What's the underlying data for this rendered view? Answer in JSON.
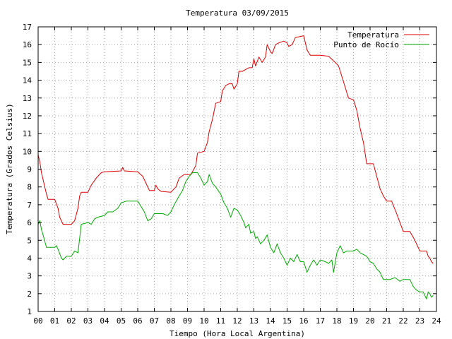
{
  "chart_data": {
    "type": "line",
    "title": "Temperatura 03/09/2015",
    "xlabel": "Tiempo (Hora Local Argentina)",
    "ylabel": "Temperatura (Grados Celsius)",
    "xlim": [
      0,
      24
    ],
    "ylim": [
      1,
      17
    ],
    "x_ticks": [
      "00",
      "01",
      "02",
      "03",
      "04",
      "05",
      "06",
      "07",
      "08",
      "09",
      "10",
      "11",
      "12",
      "13",
      "14",
      "15",
      "16",
      "17",
      "18",
      "19",
      "20",
      "21",
      "22",
      "23",
      "24"
    ],
    "y_ticks": [
      "1",
      "2",
      "3",
      "4",
      "5",
      "6",
      "7",
      "8",
      "9",
      "10",
      "11",
      "12",
      "13",
      "14",
      "15",
      "16",
      "17"
    ],
    "grid": true,
    "legend_position": "top-right",
    "series": [
      {
        "name": "Temperatura",
        "color": "#dd0000",
        "points": [
          [
            0.0,
            9.8
          ],
          [
            0.1,
            9.4
          ],
          [
            0.2,
            8.8
          ],
          [
            0.4,
            8.0
          ],
          [
            0.5,
            7.6
          ],
          [
            0.6,
            7.3
          ],
          [
            1.0,
            7.3
          ],
          [
            1.2,
            6.8
          ],
          [
            1.3,
            6.3
          ],
          [
            1.5,
            5.9
          ],
          [
            2.0,
            5.9
          ],
          [
            2.2,
            6.1
          ],
          [
            2.4,
            6.8
          ],
          [
            2.5,
            7.5
          ],
          [
            2.6,
            7.7
          ],
          [
            3.0,
            7.7
          ],
          [
            3.2,
            8.1
          ],
          [
            3.5,
            8.5
          ],
          [
            3.8,
            8.8
          ],
          [
            4.0,
            8.85
          ],
          [
            5.0,
            8.9
          ],
          [
            5.1,
            9.1
          ],
          [
            5.2,
            8.9
          ],
          [
            6.0,
            8.85
          ],
          [
            6.3,
            8.6
          ],
          [
            6.5,
            8.2
          ],
          [
            6.7,
            7.8
          ],
          [
            7.0,
            7.8
          ],
          [
            7.1,
            8.1
          ],
          [
            7.2,
            7.9
          ],
          [
            7.4,
            7.75
          ],
          [
            8.0,
            7.7
          ],
          [
            8.3,
            8.0
          ],
          [
            8.5,
            8.5
          ],
          [
            8.8,
            8.7
          ],
          [
            9.2,
            8.7
          ],
          [
            9.5,
            9.2
          ],
          [
            9.6,
            9.9
          ],
          [
            10.0,
            10.0
          ],
          [
            10.2,
            10.5
          ],
          [
            10.3,
            11.1
          ],
          [
            10.5,
            11.8
          ],
          [
            10.7,
            12.7
          ],
          [
            11.0,
            12.8
          ],
          [
            11.1,
            13.4
          ],
          [
            11.3,
            13.7
          ],
          [
            11.5,
            13.8
          ],
          [
            11.7,
            13.8
          ],
          [
            11.8,
            13.5
          ],
          [
            12.0,
            13.8
          ],
          [
            12.1,
            14.5
          ],
          [
            12.3,
            14.5
          ],
          [
            12.5,
            14.6
          ],
          [
            12.7,
            14.7
          ],
          [
            12.9,
            14.7
          ],
          [
            13.0,
            15.2
          ],
          [
            13.1,
            14.8
          ],
          [
            13.3,
            15.3
          ],
          [
            13.5,
            15.0
          ],
          [
            13.7,
            15.3
          ],
          [
            13.8,
            16.0
          ],
          [
            14.0,
            15.6
          ],
          [
            14.1,
            15.5
          ],
          [
            14.3,
            16.0
          ],
          [
            14.5,
            16.1
          ],
          [
            14.8,
            16.2
          ],
          [
            15.0,
            16.1
          ],
          [
            15.1,
            15.9
          ],
          [
            15.3,
            16.0
          ],
          [
            15.5,
            16.4
          ],
          [
            16.0,
            16.5
          ],
          [
            16.1,
            16.1
          ],
          [
            16.2,
            15.7
          ],
          [
            16.4,
            15.4
          ],
          [
            17.0,
            15.4
          ],
          [
            17.5,
            15.35
          ],
          [
            17.9,
            15.0
          ],
          [
            18.1,
            14.8
          ],
          [
            18.3,
            14.2
          ],
          [
            18.5,
            13.6
          ],
          [
            18.7,
            13.0
          ],
          [
            19.0,
            12.9
          ],
          [
            19.2,
            12.3
          ],
          [
            19.4,
            11.3
          ],
          [
            19.6,
            10.5
          ],
          [
            19.8,
            9.3
          ],
          [
            20.0,
            9.3
          ],
          [
            20.2,
            9.3
          ],
          [
            20.4,
            8.6
          ],
          [
            20.6,
            7.9
          ],
          [
            20.8,
            7.5
          ],
          [
            21.0,
            7.2
          ],
          [
            21.3,
            7.2
          ],
          [
            21.6,
            6.5
          ],
          [
            21.8,
            6.0
          ],
          [
            22.0,
            5.5
          ],
          [
            22.4,
            5.5
          ],
          [
            22.7,
            5.0
          ],
          [
            22.8,
            4.8
          ],
          [
            23.0,
            4.4
          ],
          [
            23.2,
            4.4
          ],
          [
            23.4,
            4.4
          ],
          [
            23.5,
            4.1
          ],
          [
            23.6,
            4.0
          ],
          [
            23.7,
            3.8
          ],
          [
            23.8,
            3.7
          ]
        ]
      },
      {
        "name": "Punto de Rocío",
        "color": "#00aa00",
        "points": [
          [
            0.0,
            5.9
          ],
          [
            0.1,
            6.1
          ],
          [
            0.2,
            5.6
          ],
          [
            0.3,
            5.3
          ],
          [
            0.5,
            4.6
          ],
          [
            1.0,
            4.6
          ],
          [
            1.1,
            4.7
          ],
          [
            1.2,
            4.5
          ],
          [
            1.4,
            4.0
          ],
          [
            1.5,
            3.9
          ],
          [
            1.7,
            4.1
          ],
          [
            2.0,
            4.1
          ],
          [
            2.2,
            4.4
          ],
          [
            2.4,
            4.3
          ],
          [
            2.6,
            5.9
          ],
          [
            3.0,
            6.0
          ],
          [
            3.2,
            5.9
          ],
          [
            3.4,
            6.2
          ],
          [
            3.6,
            6.3
          ],
          [
            4.0,
            6.4
          ],
          [
            4.2,
            6.6
          ],
          [
            4.5,
            6.6
          ],
          [
            4.8,
            6.8
          ],
          [
            5.0,
            7.1
          ],
          [
            5.3,
            7.2
          ],
          [
            6.0,
            7.2
          ],
          [
            6.2,
            6.9
          ],
          [
            6.4,
            6.6
          ],
          [
            6.6,
            6.1
          ],
          [
            6.8,
            6.2
          ],
          [
            7.0,
            6.5
          ],
          [
            7.2,
            6.5
          ],
          [
            7.5,
            6.5
          ],
          [
            7.8,
            6.4
          ],
          [
            8.0,
            6.6
          ],
          [
            8.2,
            7.0
          ],
          [
            8.5,
            7.5
          ],
          [
            8.7,
            7.8
          ],
          [
            8.9,
            8.3
          ],
          [
            9.1,
            8.6
          ],
          [
            9.3,
            8.8
          ],
          [
            9.6,
            8.8
          ],
          [
            9.8,
            8.5
          ],
          [
            10.0,
            8.1
          ],
          [
            10.2,
            8.3
          ],
          [
            10.3,
            8.7
          ],
          [
            10.5,
            8.2
          ],
          [
            10.7,
            8.0
          ],
          [
            11.0,
            7.6
          ],
          [
            11.2,
            7.1
          ],
          [
            11.4,
            6.8
          ],
          [
            11.6,
            6.3
          ],
          [
            11.8,
            6.8
          ],
          [
            12.0,
            6.7
          ],
          [
            12.2,
            6.4
          ],
          [
            12.4,
            6.0
          ],
          [
            12.5,
            5.7
          ],
          [
            12.7,
            5.9
          ],
          [
            12.8,
            5.4
          ],
          [
            13.0,
            5.5
          ],
          [
            13.1,
            5.1
          ],
          [
            13.2,
            5.2
          ],
          [
            13.4,
            4.8
          ],
          [
            13.6,
            5.0
          ],
          [
            13.8,
            5.3
          ],
          [
            14.0,
            4.6
          ],
          [
            14.2,
            4.3
          ],
          [
            14.4,
            4.8
          ],
          [
            14.6,
            4.3
          ],
          [
            14.8,
            4.0
          ],
          [
            15.0,
            3.6
          ],
          [
            15.2,
            4.0
          ],
          [
            15.4,
            3.8
          ],
          [
            15.6,
            4.2
          ],
          [
            15.8,
            3.8
          ],
          [
            16.0,
            3.8
          ],
          [
            16.2,
            3.2
          ],
          [
            16.4,
            3.6
          ],
          [
            16.6,
            3.9
          ],
          [
            16.8,
            3.6
          ],
          [
            17.0,
            3.9
          ],
          [
            17.3,
            3.8
          ],
          [
            17.5,
            3.7
          ],
          [
            17.7,
            3.9
          ],
          [
            17.8,
            3.2
          ],
          [
            18.0,
            4.3
          ],
          [
            18.2,
            4.7
          ],
          [
            18.4,
            4.3
          ],
          [
            18.6,
            4.4
          ],
          [
            19.0,
            4.4
          ],
          [
            19.2,
            4.5
          ],
          [
            19.4,
            4.3
          ],
          [
            19.6,
            4.2
          ],
          [
            19.8,
            4.1
          ],
          [
            20.0,
            3.8
          ],
          [
            20.2,
            3.7
          ],
          [
            20.4,
            3.4
          ],
          [
            20.6,
            3.2
          ],
          [
            20.8,
            2.8
          ],
          [
            21.2,
            2.8
          ],
          [
            21.5,
            2.9
          ],
          [
            21.8,
            2.7
          ],
          [
            22.0,
            2.8
          ],
          [
            22.4,
            2.8
          ],
          [
            22.6,
            2.4
          ],
          [
            22.8,
            2.2
          ],
          [
            23.0,
            2.1
          ],
          [
            23.2,
            2.1
          ],
          [
            23.3,
            1.9
          ],
          [
            23.4,
            1.7
          ],
          [
            23.5,
            2.1
          ],
          [
            23.6,
            2.0
          ],
          [
            23.7,
            1.8
          ],
          [
            23.8,
            1.9
          ]
        ]
      }
    ]
  }
}
